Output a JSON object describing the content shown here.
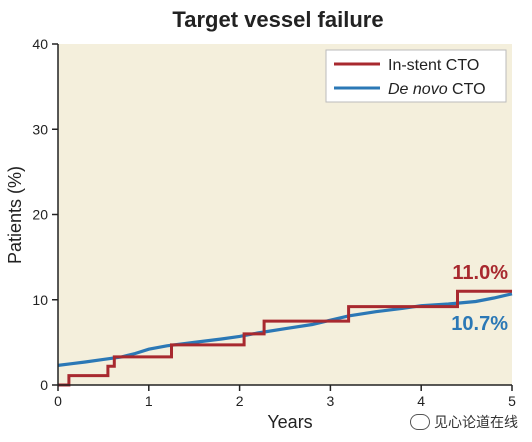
{
  "chart_data": {
    "type": "line",
    "step": true,
    "title": "Target vessel failure",
    "xlabel": "Years",
    "ylabel": "Patients (%)",
    "xlim": [
      0,
      5
    ],
    "ylim": [
      0,
      40
    ],
    "xticks": [
      0,
      1,
      2,
      3,
      4,
      5
    ],
    "yticks": [
      0,
      10,
      20,
      30,
      40
    ],
    "grid": false,
    "background": "#f4efdc",
    "legend": {
      "placement": "top-right"
    },
    "series": [
      {
        "name": "In-stent CTO",
        "color": "#a8292f",
        "end_label": "11.0%",
        "points": [
          [
            0,
            0
          ],
          [
            0.12,
            0
          ],
          [
            0.12,
            1.1
          ],
          [
            0.55,
            1.1
          ],
          [
            0.55,
            2.2
          ],
          [
            0.62,
            2.2
          ],
          [
            0.62,
            3.3
          ],
          [
            1.25,
            3.3
          ],
          [
            1.25,
            4.7
          ],
          [
            2.05,
            4.7
          ],
          [
            2.05,
            6.0
          ],
          [
            2.27,
            6.0
          ],
          [
            2.27,
            7.5
          ],
          [
            3.2,
            7.5
          ],
          [
            3.2,
            9.2
          ],
          [
            4.4,
            9.2
          ],
          [
            4.4,
            11.0
          ],
          [
            5.0,
            11.0
          ]
        ]
      },
      {
        "name": "De novo CTO",
        "name_italic_part": "De novo",
        "name_plain_part": " CTO",
        "color": "#2b78b6",
        "end_label": "10.7%",
        "points": [
          [
            0,
            2.3
          ],
          [
            0.15,
            2.5
          ],
          [
            0.3,
            2.7
          ],
          [
            0.5,
            3.0
          ],
          [
            0.7,
            3.3
          ],
          [
            0.85,
            3.7
          ],
          [
            1.0,
            4.2
          ],
          [
            1.2,
            4.6
          ],
          [
            1.5,
            5.0
          ],
          [
            1.8,
            5.4
          ],
          [
            2.0,
            5.7
          ],
          [
            2.2,
            6.1
          ],
          [
            2.5,
            6.6
          ],
          [
            2.8,
            7.1
          ],
          [
            3.0,
            7.6
          ],
          [
            3.2,
            8.1
          ],
          [
            3.5,
            8.6
          ],
          [
            3.8,
            9.0
          ],
          [
            4.0,
            9.3
          ],
          [
            4.3,
            9.5
          ],
          [
            4.6,
            9.8
          ],
          [
            4.8,
            10.2
          ],
          [
            5.0,
            10.7
          ]
        ]
      }
    ]
  },
  "watermark": {
    "text": "见心论道在线",
    "icon": "wechat-icon"
  }
}
